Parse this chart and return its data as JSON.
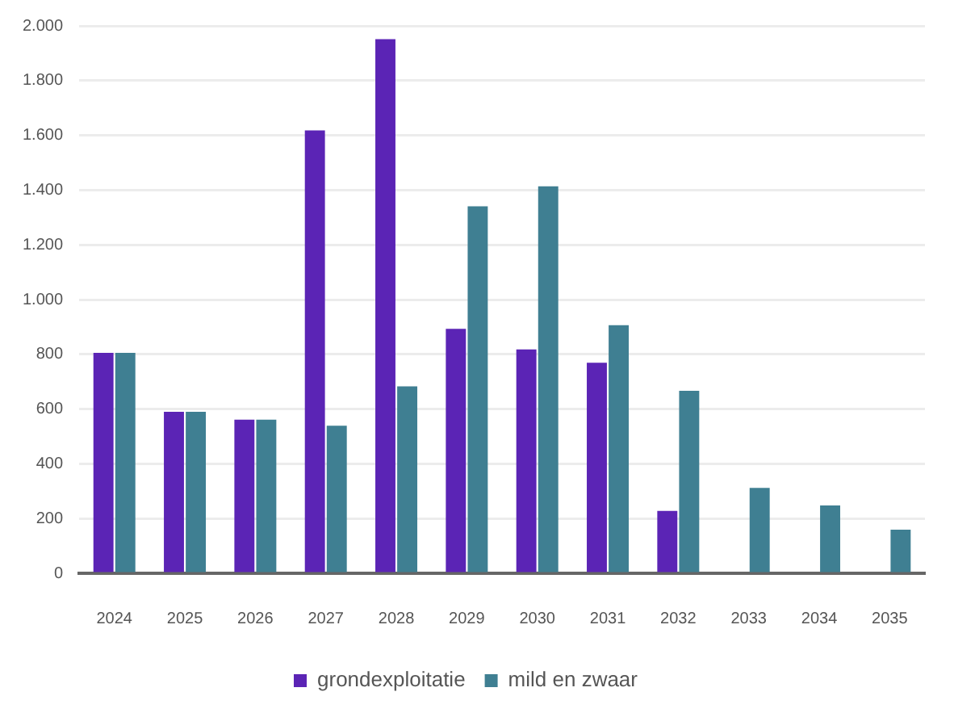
{
  "chart_data": {
    "type": "bar",
    "categories": [
      "2024",
      "2025",
      "2026",
      "2027",
      "2028",
      "2029",
      "2030",
      "2031",
      "2032",
      "2033",
      "2034",
      "2035"
    ],
    "series": [
      {
        "name": "grondexploitatie",
        "color": "#5b24b5",
        "values": [
          805,
          590,
          561,
          1618,
          1951,
          893,
          818,
          769,
          228,
          null,
          null,
          null
        ]
      },
      {
        "name": "mild en zwaar",
        "color": "#3f7f92",
        "values": [
          805,
          590,
          561,
          539,
          683,
          1341,
          1414,
          906,
          667,
          312,
          248,
          159
        ]
      }
    ],
    "ylim": [
      0,
      2000
    ],
    "yticks": [
      0,
      200,
      400,
      600,
      800,
      {
        "value": 1000,
        "label": "1.000"
      },
      {
        "value": 1200,
        "label": "1.200"
      },
      {
        "value": 1400,
        "label": "1.400"
      },
      {
        "value": 1600,
        "label": "1.600"
      },
      {
        "value": 1800,
        "label": "1.800"
      },
      {
        "value": 2000,
        "label": "2.000"
      }
    ],
    "grid": "y",
    "legend": "bottom"
  }
}
